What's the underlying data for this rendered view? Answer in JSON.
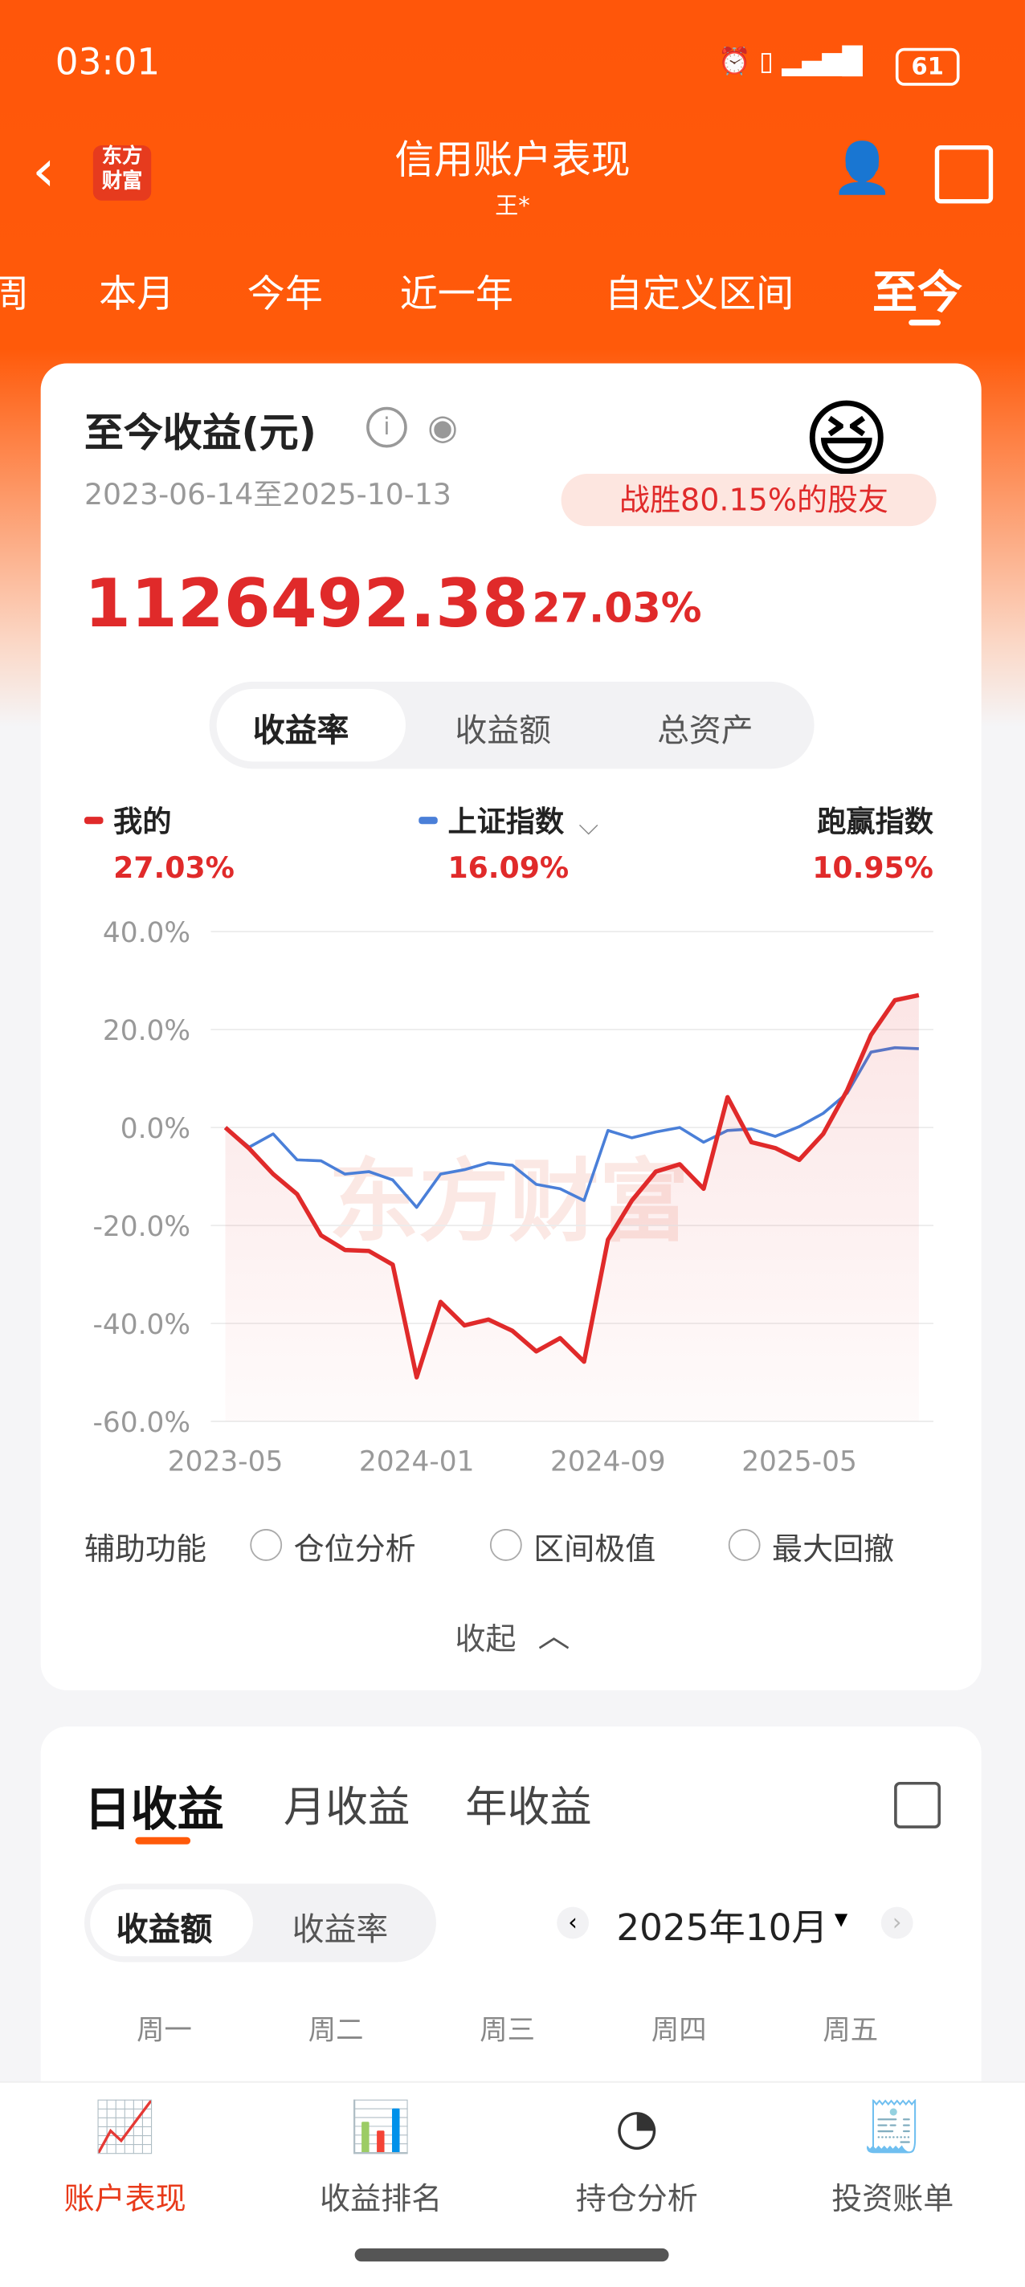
{
  "status": {
    "time": "03:01",
    "battery": "61"
  },
  "header": {
    "title": "信用账户表现",
    "subtitle": "王*",
    "logo": "东方财富"
  },
  "tabs": [
    "周",
    "本月",
    "今年",
    "近一年",
    "自定义区间",
    "至今"
  ],
  "summary": {
    "title": "至今收益(元)",
    "range": "2023-06-14至2025-10-13",
    "badge": "战胜80.15%的股友",
    "amount": "1126492.38",
    "rate": "27.03%"
  },
  "toggle": [
    "收益率",
    "收益额",
    "总资产"
  ],
  "chart_data": {
    "type": "line",
    "watermark": "东方财富",
    "x": [
      "2023-05",
      "2023-06",
      "2023-07",
      "2023-08",
      "2023-09",
      "2023-10",
      "2023-11",
      "2023-12",
      "2024-01",
      "2024-02",
      "2024-03",
      "2024-04",
      "2024-05",
      "2024-06",
      "2024-07",
      "2024-08",
      "2024-09",
      "2024-10",
      "2024-11",
      "2024-12",
      "2025-01",
      "2025-02",
      "2025-03",
      "2025-04",
      "2025-05",
      "2025-06",
      "2025-07",
      "2025-08",
      "2025-09",
      "2025-10"
    ],
    "xlim": [
      "2023-05",
      "2025-10"
    ],
    "xticks": [
      "2023-05",
      "2024-01",
      "2024-09",
      "2025-05"
    ],
    "ylim": [
      -60,
      40
    ],
    "yticks": [
      {
        "value": 40,
        "label": "40.0%"
      },
      {
        "value": 20,
        "label": "20.0%"
      },
      {
        "value": 0,
        "label": "0.0%"
      },
      {
        "value": -20,
        "label": "-20.0%"
      },
      {
        "value": -40,
        "label": "-40.0%"
      },
      {
        "value": -60,
        "label": "-60.0%"
      }
    ],
    "grid": true,
    "series": [
      {
        "name": "我的",
        "color": "#e02a2a",
        "values": [
          0,
          -4.3,
          -9.5,
          -13.6,
          -22,
          -25,
          -25.2,
          -28,
          -51,
          -35.6,
          -40.4,
          -39.2,
          -41.5,
          -45.7,
          -43,
          -47.8,
          -22.9,
          -14.9,
          -9,
          -7.5,
          -12.5,
          6.2,
          -3,
          -4.2,
          -6.6,
          -1.3,
          7.6,
          18.9,
          26,
          27.03
        ],
        "value_label": "27.03%",
        "final": 27.03
      },
      {
        "name": "上证指数",
        "color": "#4a7fd8",
        "values": [
          0,
          -4,
          -1.3,
          -6.6,
          -6.8,
          -9.5,
          -9,
          -10.7,
          -16.3,
          -9.5,
          -8.6,
          -7.2,
          -7.7,
          -11.6,
          -12.5,
          -14.9,
          -0.6,
          -2.1,
          -0.9,
          0,
          -3,
          -0.6,
          -0.3,
          -1.8,
          0.2,
          2.9,
          7,
          15.4,
          16.3,
          16.09
        ],
        "value_label": "16.09%",
        "final": 16.09
      }
    ],
    "excess": {
      "label": "跑赢指数",
      "value_label": "10.95%",
      "value": 10.95
    }
  },
  "tools": {
    "label": "辅助功能",
    "options": [
      "仓位分析",
      "区间极值",
      "最大回撤"
    ],
    "collapse": "收起"
  },
  "daily": {
    "tabs": [
      "日收益",
      "月收益",
      "年收益"
    ],
    "toggle": [
      "收益额",
      "收益率"
    ],
    "month": "2025年10月",
    "weekdays": [
      "周一",
      "周二",
      "周三",
      "周四",
      "周五"
    ]
  },
  "nav": [
    "账户表现",
    "收益排名",
    "持仓分析",
    "投资账单"
  ]
}
